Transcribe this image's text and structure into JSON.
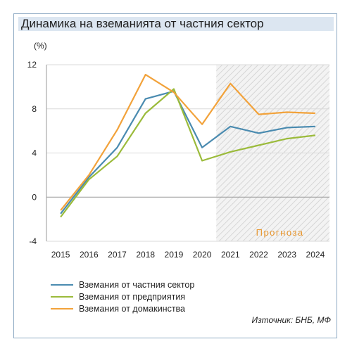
{
  "title": "Динамика на вземанията от частния сектор",
  "source": "Източник: БНБ, МФ",
  "chart_data": {
    "type": "line",
    "ylabel": "(%)",
    "x": [
      "2015",
      "2016",
      "2017",
      "2018",
      "2019",
      "2020",
      "2021",
      "2022",
      "2023",
      "2024"
    ],
    "ylim": [
      -4,
      12
    ],
    "yticks": [
      -4,
      0,
      4,
      8,
      12
    ],
    "forecast_label": "Прогноза",
    "forecast_from": "2020",
    "forecast_to": "2024",
    "grid": "horizontal",
    "legend_position": "bottom-left",
    "series": [
      {
        "name": "Вземания от частния сектор",
        "color": "#4a8bb0",
        "values": [
          -1.5,
          1.8,
          4.5,
          8.9,
          9.6,
          4.5,
          6.4,
          5.8,
          6.3,
          6.4
        ]
      },
      {
        "name": "Вземания от предприятия",
        "color": "#9bbb3b",
        "values": [
          -1.8,
          1.6,
          3.7,
          7.6,
          9.8,
          3.3,
          4.1,
          4.7,
          5.3,
          5.6
        ]
      },
      {
        "name": "Вземания от домакинства",
        "color": "#f2a23a",
        "values": [
          -1.2,
          2.0,
          6.1,
          11.1,
          9.5,
          6.6,
          10.3,
          7.5,
          7.7,
          7.6
        ]
      }
    ]
  }
}
